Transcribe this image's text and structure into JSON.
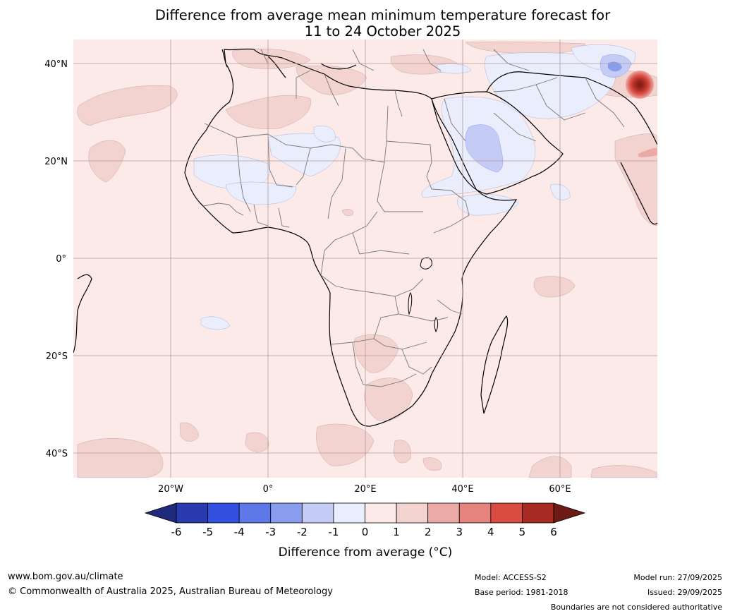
{
  "title": {
    "line1": "Difference from average mean minimum temperature forecast for",
    "line2": "11 to 24 October 2025"
  },
  "map": {
    "lat_labels": [
      "40°N",
      "20°N",
      "0°",
      "20°S",
      "40°S"
    ],
    "lat_values": [
      40,
      20,
      0,
      -20,
      -40
    ],
    "lon_labels": [
      "20°W",
      "0°",
      "20°E",
      "40°E",
      "60°E"
    ],
    "lon_values": [
      -20,
      0,
      20,
      40,
      60
    ],
    "extent": {
      "lon_min": -40,
      "lon_max": 80,
      "lat_min": -45,
      "lat_max": 45
    }
  },
  "colorbar": {
    "title": "Difference from average (°C)",
    "tick_labels": [
      "-6",
      "-5",
      "-4",
      "-3",
      "-2",
      "-1",
      "0",
      "1",
      "2",
      "3",
      "4",
      "5",
      "6"
    ],
    "colors": [
      "#1f2a7a",
      "#2a3bb0",
      "#3150e0",
      "#5f78e8",
      "#8a9ced",
      "#c4cbf4",
      "#eaedfc",
      "#fbeae8",
      "#f3d3d0",
      "#ecaaa6",
      "#e5837d",
      "#d84c42",
      "#a82b23",
      "#6e1a14"
    ]
  },
  "footer": {
    "website": "www.bom.gov.au/climate",
    "copyright": "© Commonwealth of Australia 2025, Australian Bureau of Meteorology",
    "model": "Model: ACCESS-S2",
    "base_period": "Base period: 1981-2018",
    "model_run": "Model run: 27/09/2025",
    "issued": "Issued: 29/09/2025",
    "disclaimer": "Boundaries are not considered authoritative"
  }
}
